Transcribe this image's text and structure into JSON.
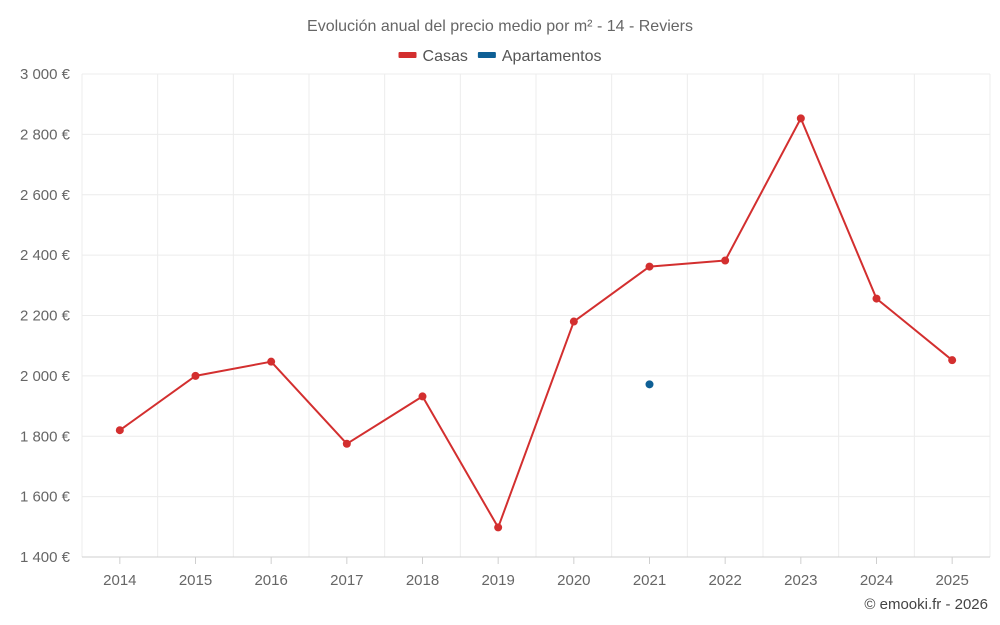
{
  "chart_data": {
    "type": "line",
    "title": "Evolución anual del precio medio por m² - 14 - Reviers",
    "categories": [
      "2014",
      "2015",
      "2016",
      "2017",
      "2018",
      "2019",
      "2020",
      "2021",
      "2022",
      "2023",
      "2024",
      "2025"
    ],
    "series": [
      {
        "name": "Casas",
        "color": "#d32f2f",
        "values": [
          1820,
          2000,
          2047,
          1775,
          1932,
          1498,
          2180,
          2362,
          2382,
          2853,
          2256,
          2052
        ]
      },
      {
        "name": "Apartamentos",
        "color": "#0e5f95",
        "values": [
          null,
          null,
          null,
          null,
          null,
          null,
          null,
          1972,
          null,
          null,
          null,
          null
        ]
      }
    ],
    "ylim": [
      1400,
      3000
    ],
    "yticks": [
      1400,
      1600,
      1800,
      2000,
      2200,
      2400,
      2600,
      2800,
      3000
    ],
    "ytick_labels": [
      "1 400 €",
      "1 600 €",
      "1 800 €",
      "2 000 €",
      "2 200 €",
      "2 400 €",
      "2 600 €",
      "2 800 €",
      "3 000 €"
    ],
    "xlabel": "",
    "ylabel": "",
    "grid": true,
    "legend_position": "top-center"
  },
  "credit": "© emooki.fr - 2026"
}
